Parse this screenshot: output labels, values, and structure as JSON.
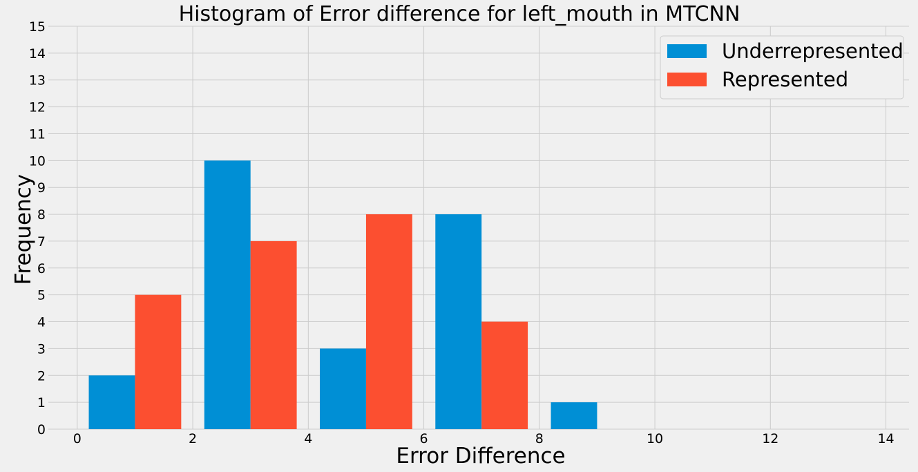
{
  "chart_data": {
    "type": "bar",
    "title": "Histogram of Error difference for left_mouth in MTCNN",
    "xlabel": "Error Difference",
    "ylabel": "Frequency",
    "xlim": [
      -0.5,
      14.4
    ],
    "ylim": [
      0,
      15
    ],
    "x_ticks": [
      0,
      2,
      4,
      6,
      8,
      10,
      12,
      14
    ],
    "y_ticks": [
      0,
      1,
      2,
      3,
      4,
      5,
      6,
      7,
      8,
      9,
      10,
      11,
      12,
      13,
      14,
      15
    ],
    "grid": true,
    "legend_position": "top-right",
    "bin_width": 0.8,
    "series": [
      {
        "name": "Underrepresented",
        "color": "#008fd5",
        "bin_starts": [
          0.2,
          2.2,
          4.2,
          6.2,
          8.2
        ],
        "values": [
          2,
          10,
          3,
          8,
          1
        ]
      },
      {
        "name": "Represented",
        "color": "#fc4f30",
        "bin_starts": [
          1.0,
          3.0,
          5.0,
          7.0
        ],
        "values": [
          5,
          7,
          8,
          4
        ]
      }
    ]
  }
}
